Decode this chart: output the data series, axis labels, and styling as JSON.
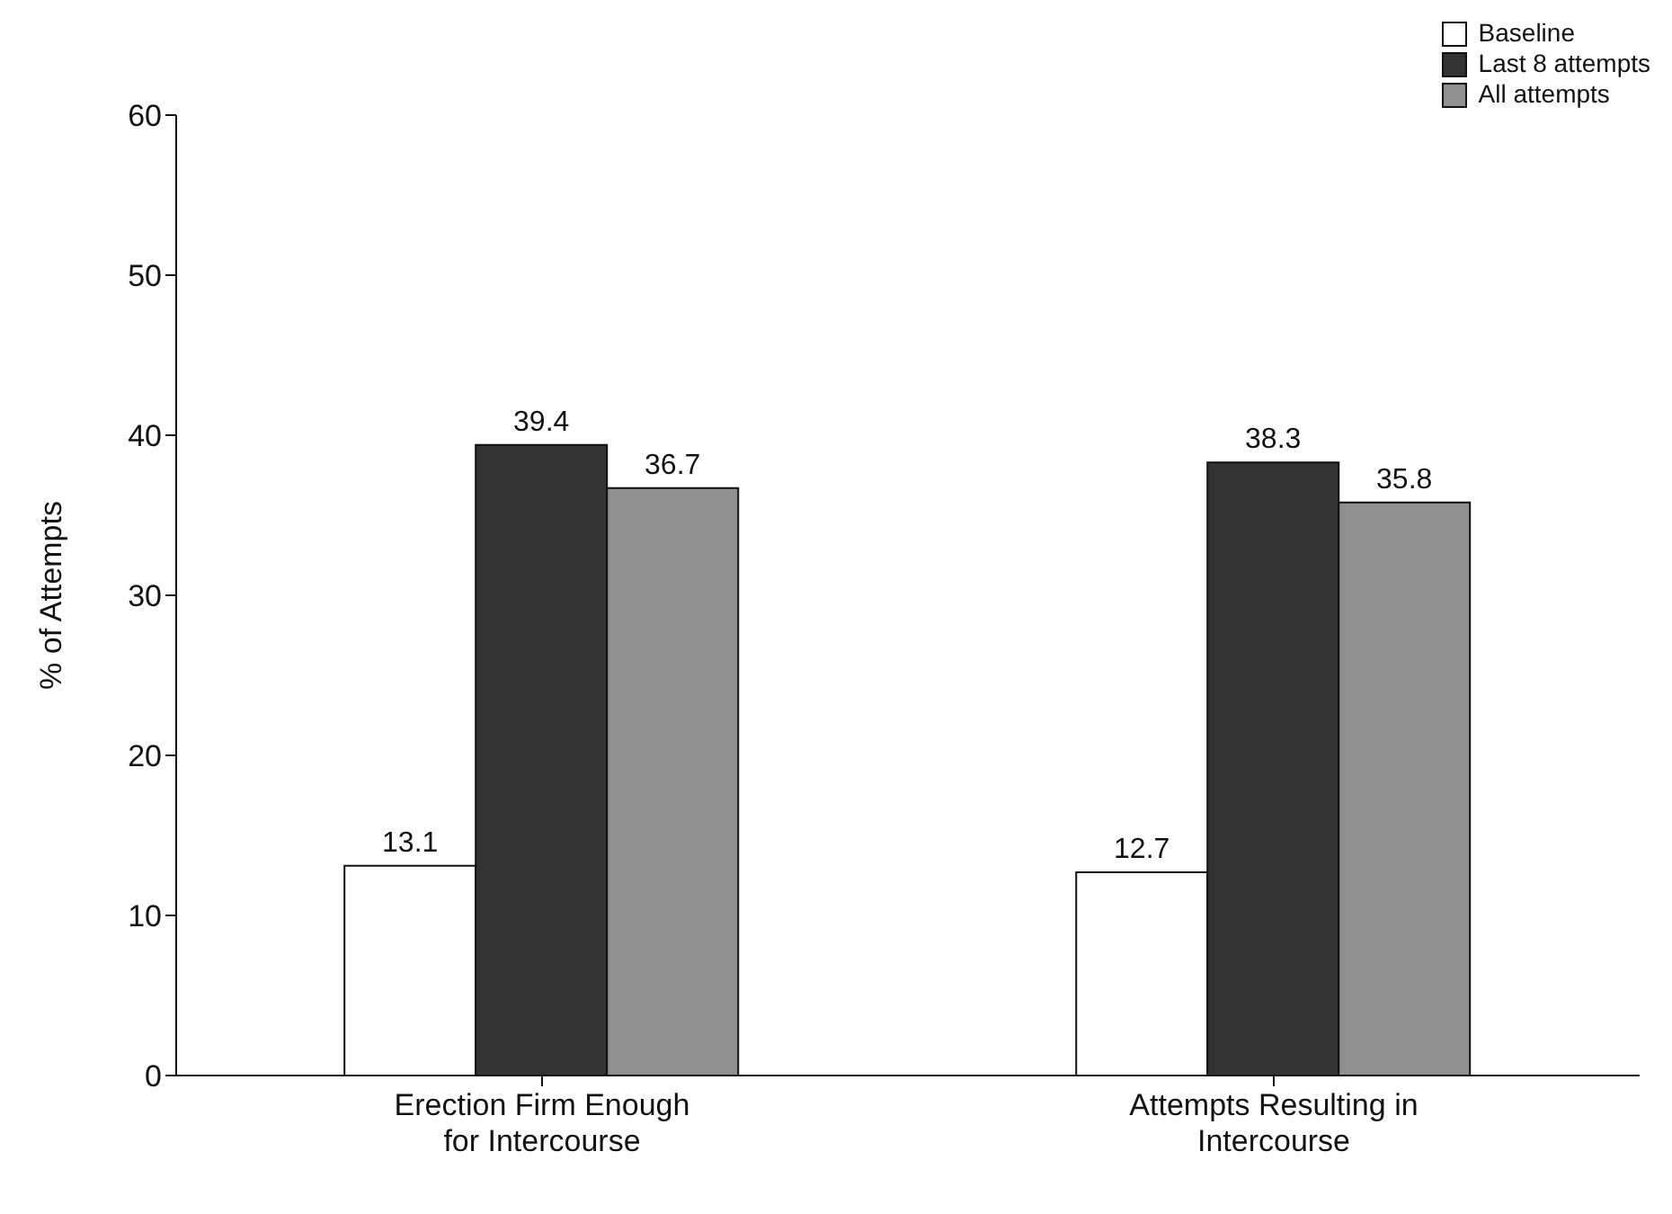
{
  "chart_data": {
    "type": "bar",
    "ylabel": "% of Attempts",
    "categories": [
      "Erection Firm Enough for Intercourse",
      "Attempts Resulting in Intercourse"
    ],
    "series": [
      {
        "name": "Baseline",
        "color": "#ffffff",
        "values": [
          13.1,
          12.7
        ]
      },
      {
        "name": "Last 8 attempts",
        "color": "#333333",
        "values": [
          39.4,
          38.3
        ]
      },
      {
        "name": "All attempts",
        "color": "#8f8f8f",
        "values": [
          36.7,
          35.8
        ]
      }
    ],
    "ylim": [
      0,
      60
    ],
    "yticks": [
      0,
      10,
      20,
      30,
      40,
      50,
      60
    ],
    "grid": false,
    "legend": "top right",
    "data_labels": true
  }
}
